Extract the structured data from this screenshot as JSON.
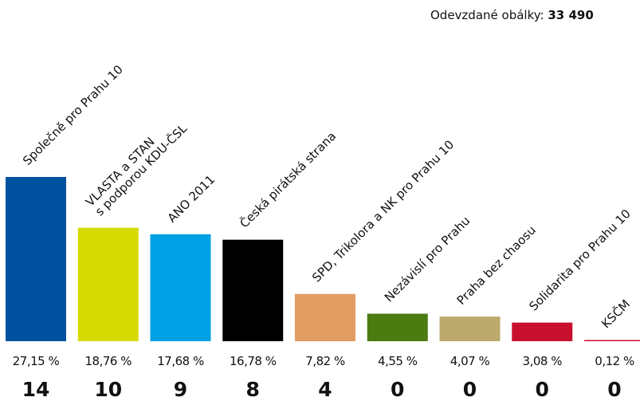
{
  "chart_data": {
    "type": "bar",
    "envelopes_label": "Odevzdané obálky:",
    "envelopes": "33 490",
    "categories": [
      [
        "Společně pro Prahu 10"
      ],
      [
        "VLASTA a STAN",
        "s podporou KDU-ČSL"
      ],
      [
        "ANO 2011"
      ],
      [
        "Česká pirátská strana"
      ],
      [
        "SPD, Trikolora a NK pro Prahu 10"
      ],
      [
        "Nezávislí pro Prahu"
      ],
      [
        "Praha bez chaosu"
      ],
      [
        "Solidarita pro Prahu 10"
      ],
      [
        "KSČM"
      ]
    ],
    "values": [
      27.15,
      18.76,
      17.68,
      16.78,
      7.82,
      4.55,
      4.07,
      3.08,
      0.12
    ],
    "value_labels": [
      "27,15 %",
      "18,76 %",
      "17,68 %",
      "16,78 %",
      "7,82 %",
      "4,55 %",
      "4,07 %",
      "3,08 %",
      "0,12 %"
    ],
    "seats": [
      14,
      10,
      9,
      8,
      4,
      0,
      0,
      0,
      0
    ],
    "colors": [
      "#0050a0",
      "#d7da00",
      "#00a1e4",
      "#000000",
      "#e39c62",
      "#4a7c12",
      "#bca96c",
      "#c8102e",
      "#c8102e"
    ]
  }
}
